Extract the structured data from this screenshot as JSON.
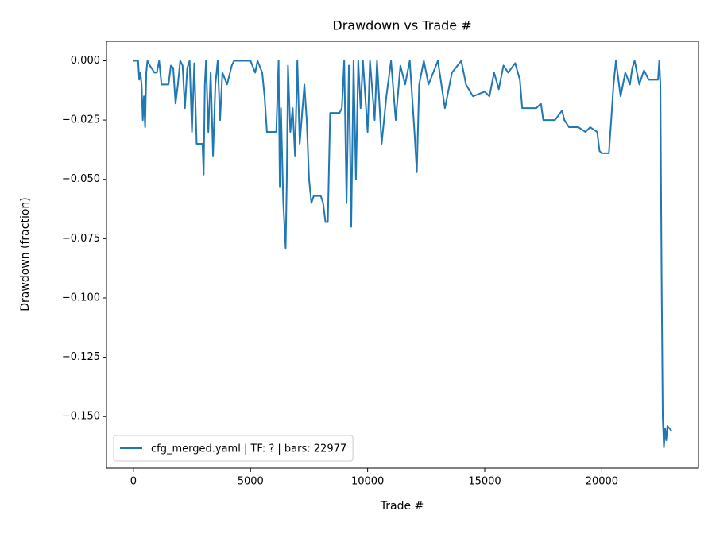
{
  "chart_data": {
    "type": "line",
    "title": "Drawdown vs Trade #",
    "x_label": "Trade #",
    "y_label": "Drawdown (fraction)",
    "xlim": [
      -1149,
      24126
    ],
    "ylim": [
      -0.1717,
      0.0082
    ],
    "xticks": [
      0,
      5000,
      10000,
      15000,
      20000
    ],
    "yticks": [
      {
        "value": -0.15,
        "label": "−0.150"
      },
      {
        "value": -0.125,
        "label": "−0.125"
      },
      {
        "value": -0.1,
        "label": "−0.100"
      },
      {
        "value": -0.075,
        "label": "−0.075"
      },
      {
        "value": -0.05,
        "label": "−0.050"
      },
      {
        "value": -0.025,
        "label": "−0.025"
      },
      {
        "value": 0,
        "label": "0.000"
      }
    ],
    "legend": "lower left",
    "grid": false,
    "x": [
      0,
      200,
      250,
      300,
      350,
      400,
      450,
      500,
      550,
      600,
      700,
      900,
      1000,
      1100,
      1200,
      1500,
      1600,
      1700,
      1800,
      1900,
      2000,
      2100,
      2200,
      2300,
      2400,
      2500,
      2600,
      2700,
      2950,
      3000,
      3050,
      3100,
      3200,
      3300,
      3400,
      3500,
      3600,
      3700,
      3800,
      4000,
      4200,
      4300,
      5000,
      5200,
      5300,
      5500,
      5600,
      5700,
      6100,
      6200,
      6250,
      6300,
      6400,
      6500,
      6550,
      6600,
      6700,
      6800,
      6900,
      7000,
      7100,
      7300,
      7400,
      7500,
      7600,
      7700,
      8000,
      8100,
      8200,
      8300,
      8400,
      8800,
      8900,
      9000,
      9100,
      9200,
      9300,
      9400,
      9500,
      9600,
      9700,
      9800,
      10000,
      10100,
      10300,
      10400,
      10600,
      10800,
      11000,
      11200,
      11400,
      11600,
      11800,
      12000,
      12100,
      12200,
      12400,
      12600,
      13000,
      13300,
      13600,
      14000,
      14200,
      14500,
      15000,
      15200,
      15400,
      15600,
      15800,
      16000,
      16300,
      16500,
      16600,
      17200,
      17400,
      17500,
      18000,
      18300,
      18400,
      18600,
      19000,
      19300,
      19500,
      19800,
      19900,
      20000,
      20300,
      20400,
      20500,
      20600,
      20800,
      21000,
      21200,
      21300,
      21400,
      21600,
      21800,
      22000,
      22400,
      22450,
      22500,
      22550,
      22600,
      22650,
      22700,
      22750,
      22800,
      22977
    ],
    "series": [
      {
        "name": "cfg_merged.yaml | TF: ? | bars: 22977",
        "color": "#1f77b4",
        "values": [
          0,
          0,
          -0.008,
          -0.005,
          -0.01,
          -0.025,
          -0.015,
          -0.028,
          -0.005,
          0,
          -0.002,
          -0.005,
          -0.005,
          0,
          -0.01,
          -0.01,
          -0.002,
          -0.003,
          -0.018,
          -0.01,
          0,
          -0.002,
          -0.02,
          -0.003,
          0,
          -0.03,
          -0.001,
          -0.035,
          -0.035,
          -0.048,
          -0.01,
          0,
          -0.03,
          -0.005,
          -0.04,
          -0.01,
          0,
          -0.025,
          -0.005,
          -0.01,
          -0.002,
          0,
          0,
          -0.005,
          0,
          -0.005,
          -0.015,
          -0.03,
          -0.03,
          0,
          -0.053,
          -0.02,
          -0.06,
          -0.079,
          -0.05,
          -0.002,
          -0.03,
          -0.02,
          -0.04,
          0,
          -0.035,
          -0.01,
          -0.025,
          -0.05,
          -0.06,
          -0.057,
          -0.057,
          -0.06,
          -0.068,
          -0.068,
          -0.022,
          -0.022,
          -0.02,
          0,
          -0.06,
          -0.002,
          -0.07,
          0,
          -0.05,
          0,
          -0.02,
          0,
          -0.03,
          0,
          -0.025,
          0,
          -0.035,
          -0.015,
          0,
          -0.025,
          -0.002,
          -0.01,
          0,
          -0.03,
          -0.047,
          -0.01,
          0,
          -0.01,
          0,
          -0.02,
          -0.005,
          0,
          -0.01,
          -0.015,
          -0.013,
          -0.015,
          -0.005,
          -0.012,
          -0.002,
          -0.005,
          -0.001,
          -0.008,
          -0.02,
          -0.02,
          -0.018,
          -0.025,
          -0.025,
          -0.021,
          -0.025,
          -0.028,
          -0.028,
          -0.03,
          -0.028,
          -0.03,
          -0.038,
          -0.039,
          -0.039,
          -0.025,
          -0.01,
          0,
          -0.015,
          -0.005,
          -0.01,
          -0.003,
          0,
          -0.01,
          -0.004,
          -0.008,
          -0.008,
          0,
          -0.01,
          -0.09,
          -0.15,
          -0.163,
          -0.155,
          -0.16,
          -0.154,
          -0.156
        ]
      }
    ]
  }
}
